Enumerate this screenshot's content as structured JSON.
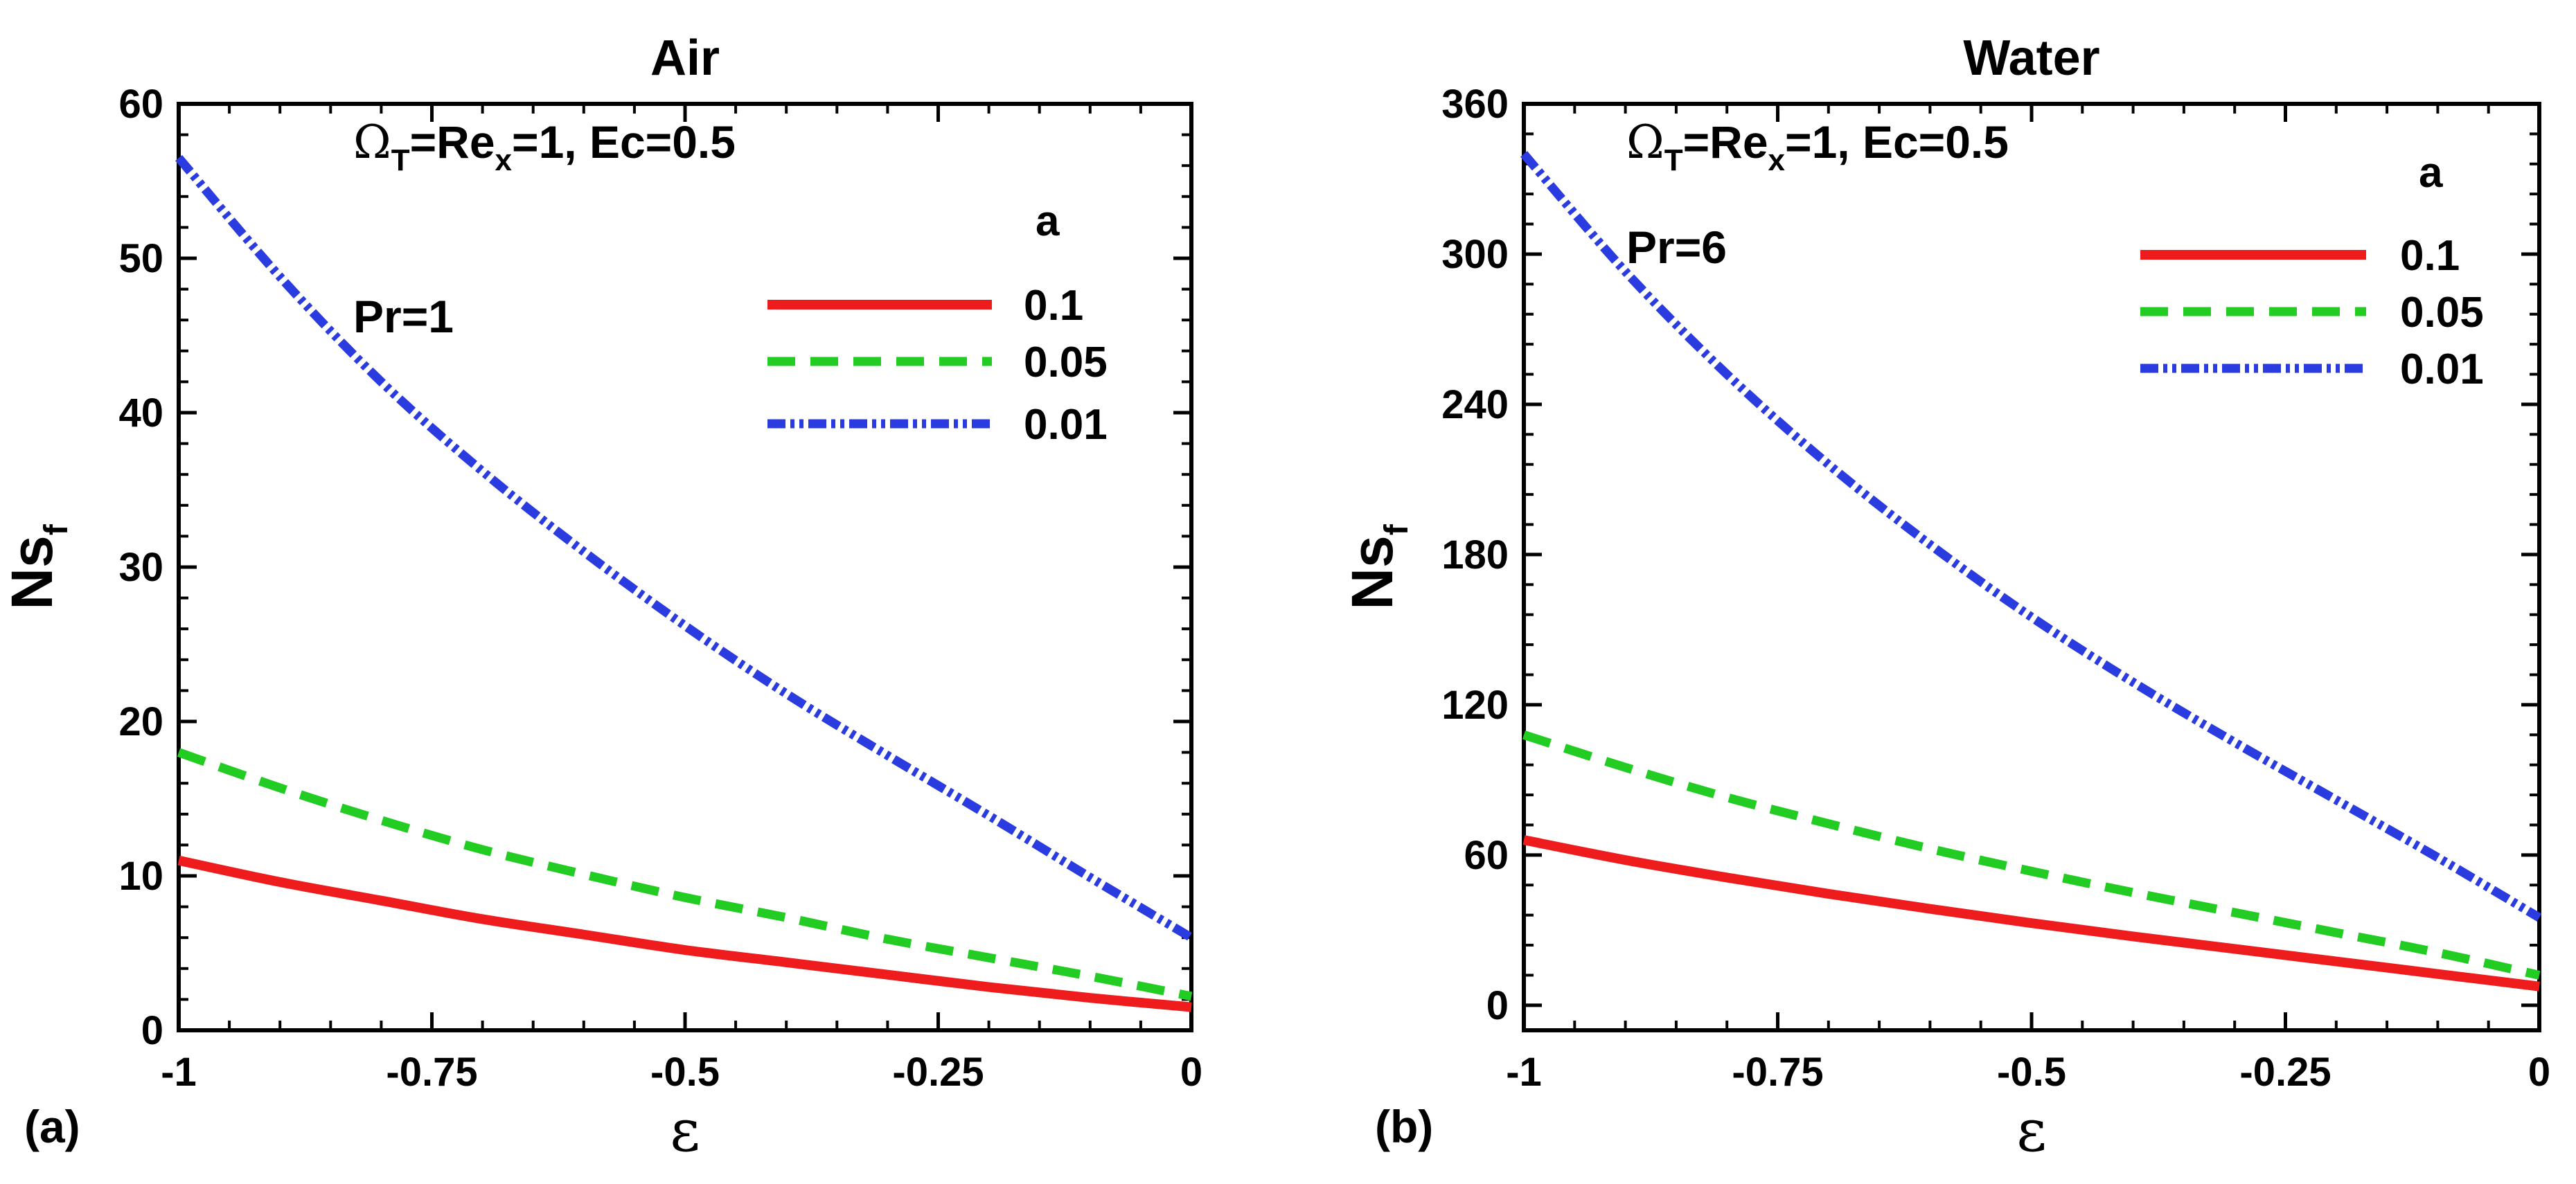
{
  "chart_data": [
    {
      "type": "line",
      "panel_tag": "(a)",
      "title": "Air",
      "xlabel": "ε",
      "ylabel": {
        "main": "Ns",
        "sub": "f"
      },
      "xlim": [
        -1,
        0
      ],
      "ylim": [
        0,
        60
      ],
      "x_ticks": [
        -1,
        -0.75,
        -0.5,
        -0.25,
        0
      ],
      "x_tick_labels": [
        "-1",
        "-0.75",
        "-0.5",
        "-0.25",
        "0"
      ],
      "y_ticks": [
        0,
        10,
        20,
        30,
        40,
        50,
        60
      ],
      "y_tick_labels": [
        "0",
        "10",
        "20",
        "30",
        "40",
        "50",
        "60"
      ],
      "annotations": {
        "params": {
          "omega": "Ω",
          "omega_sub": "T",
          "eq1": "=Re",
          "re_sub": "x",
          "tail": "=1, Ec=0.5"
        },
        "pr": "Pr=1"
      },
      "legend_title": "a",
      "legend_position": "top-right",
      "series": [
        {
          "name": "0.1",
          "color": "#ee1c1c",
          "style": "solid",
          "x": [
            -1,
            -0.9,
            -0.8,
            -0.7,
            -0.6,
            -0.5,
            -0.4,
            -0.3,
            -0.2,
            -0.1,
            0
          ],
          "values": [
            11.0,
            9.6,
            8.4,
            7.2,
            6.2,
            5.2,
            4.4,
            3.6,
            2.8,
            2.1,
            1.5
          ]
        },
        {
          "name": "0.05",
          "color": "#22cc22",
          "style": "dashed",
          "x": [
            -1,
            -0.9,
            -0.8,
            -0.7,
            -0.6,
            -0.5,
            -0.4,
            -0.3,
            -0.2,
            -0.1,
            0
          ],
          "values": [
            18.0,
            15.7,
            13.6,
            11.7,
            10.1,
            8.6,
            7.3,
            5.9,
            4.7,
            3.5,
            2.2
          ]
        },
        {
          "name": "0.01",
          "color": "#2a3ce0",
          "style": "dashdot",
          "x": [
            -1,
            -0.9,
            -0.8,
            -0.7,
            -0.6,
            -0.5,
            -0.4,
            -0.3,
            -0.2,
            -0.1,
            0
          ],
          "values": [
            56.5,
            48.8,
            42.0,
            36.2,
            31.0,
            26.2,
            21.8,
            17.8,
            13.9,
            9.9,
            6.0
          ]
        }
      ]
    },
    {
      "type": "line",
      "panel_tag": "(b)",
      "title": "Water",
      "xlabel": "ε",
      "ylabel": {
        "main": "Ns",
        "sub": "f"
      },
      "xlim": [
        -1,
        0
      ],
      "ylim": [
        -10,
        360
      ],
      "x_ticks": [
        -1,
        -0.75,
        -0.5,
        -0.25,
        0
      ],
      "x_tick_labels": [
        "-1",
        "-0.75",
        "-0.5",
        "-0.25",
        "0"
      ],
      "y_ticks": [
        0,
        60,
        120,
        180,
        240,
        300,
        360
      ],
      "y_tick_labels": [
        "0",
        "60",
        "120",
        "180",
        "240",
        "300",
        "360"
      ],
      "annotations": {
        "params": {
          "omega": "Ω",
          "omega_sub": "T",
          "eq1": "=Re",
          "re_sub": "x",
          "tail": "=1, Ec=0.5"
        },
        "pr": "Pr=6"
      },
      "legend_title": "a",
      "legend_position": "top-right",
      "series": [
        {
          "name": "0.1",
          "color": "#ee1c1c",
          "style": "solid",
          "x": [
            -1,
            -0.9,
            -0.8,
            -0.7,
            -0.6,
            -0.5,
            -0.4,
            -0.3,
            -0.2,
            -0.1,
            0
          ],
          "values": [
            66.0,
            58.0,
            51.0,
            44.5,
            38.5,
            32.8,
            27.5,
            22.5,
            17.5,
            12.5,
            7.5
          ]
        },
        {
          "name": "0.05",
          "color": "#22cc22",
          "style": "dashed",
          "x": [
            -1,
            -0.9,
            -0.8,
            -0.7,
            -0.6,
            -0.5,
            -0.4,
            -0.3,
            -0.2,
            -0.1,
            0
          ],
          "values": [
            108.0,
            95.0,
            83.0,
            72.5,
            62.5,
            53.5,
            45.0,
            37.0,
            29.0,
            21.0,
            12.0
          ]
        },
        {
          "name": "0.01",
          "color": "#2a3ce0",
          "style": "dashdot",
          "x": [
            -1,
            -0.9,
            -0.8,
            -0.7,
            -0.6,
            -0.5,
            -0.4,
            -0.3,
            -0.2,
            -0.1,
            0
          ],
          "values": [
            340.0,
            293.0,
            252.0,
            216.0,
            184.0,
            155.0,
            129.0,
            105.0,
            82.0,
            59.0,
            35.0
          ]
        }
      ]
    }
  ]
}
